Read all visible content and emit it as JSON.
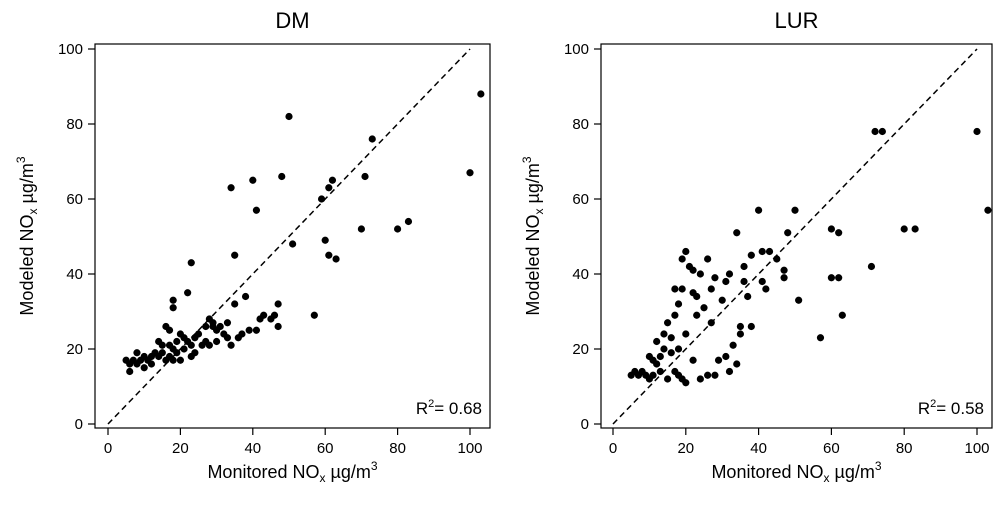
{
  "chart_data": [
    {
      "type": "scatter",
      "title": "DM",
      "xlabel": "Monitored NOx µg/m3",
      "ylabel": "Modeled NOx µg/m3",
      "xlabel_parts": [
        "Monitored NO",
        "x",
        " µg/m",
        "3"
      ],
      "ylabel_parts": [
        "Modeled NO",
        "x",
        " µg/m",
        "3"
      ],
      "xlim": [
        0,
        103
      ],
      "ylim": [
        0,
        100
      ],
      "xticks": [
        0,
        20,
        40,
        60,
        80,
        100
      ],
      "yticks": [
        0,
        20,
        40,
        60,
        80,
        100
      ],
      "grid": false,
      "reference_line": "1:1 dashed",
      "annotation": {
        "prefix": "R",
        "sup": "2",
        "text": "=  0.68"
      },
      "points": [
        [
          5,
          17
        ],
        [
          6,
          14
        ],
        [
          6,
          16
        ],
        [
          7,
          17
        ],
        [
          8,
          16
        ],
        [
          8,
          19
        ],
        [
          9,
          17
        ],
        [
          10,
          15
        ],
        [
          10,
          18
        ],
        [
          11,
          17
        ],
        [
          12,
          16
        ],
        [
          12,
          18
        ],
        [
          13,
          19
        ],
        [
          14,
          18
        ],
        [
          14,
          22
        ],
        [
          15,
          19
        ],
        [
          15,
          21
        ],
        [
          16,
          17
        ],
        [
          16,
          26
        ],
        [
          17,
          25
        ],
        [
          17,
          18
        ],
        [
          17,
          21
        ],
        [
          18,
          17
        ],
        [
          18,
          20
        ],
        [
          18,
          31
        ],
        [
          18,
          33
        ],
        [
          19,
          22
        ],
        [
          19,
          19
        ],
        [
          20,
          17
        ],
        [
          20,
          24
        ],
        [
          21,
          20
        ],
        [
          21,
          23
        ],
        [
          22,
          22
        ],
        [
          22,
          35
        ],
        [
          23,
          43
        ],
        [
          23,
          18
        ],
        [
          23,
          21
        ],
        [
          24,
          19
        ],
        [
          24,
          23
        ],
        [
          25,
          24
        ],
        [
          26,
          21
        ],
        [
          27,
          26
        ],
        [
          27,
          22
        ],
        [
          28,
          28
        ],
        [
          28,
          21
        ],
        [
          29,
          26
        ],
        [
          29,
          27
        ],
        [
          30,
          22
        ],
        [
          30,
          25
        ],
        [
          31,
          26
        ],
        [
          32,
          24
        ],
        [
          33,
          23
        ],
        [
          33,
          27
        ],
        [
          34,
          63
        ],
        [
          34,
          21
        ],
        [
          35,
          32
        ],
        [
          35,
          45
        ],
        [
          36,
          23
        ],
        [
          37,
          24
        ],
        [
          38,
          34
        ],
        [
          39,
          25
        ],
        [
          40,
          65
        ],
        [
          41,
          57
        ],
        [
          41,
          25
        ],
        [
          42,
          28
        ],
        [
          43,
          29
        ],
        [
          45,
          28
        ],
        [
          46,
          29
        ],
        [
          47,
          32
        ],
        [
          47,
          26
        ],
        [
          48,
          66
        ],
        [
          50,
          82
        ],
        [
          51,
          48
        ],
        [
          57,
          29
        ],
        [
          59,
          60
        ],
        [
          60,
          49
        ],
        [
          61,
          45
        ],
        [
          61,
          63
        ],
        [
          62,
          65
        ],
        [
          63,
          44
        ],
        [
          70,
          52
        ],
        [
          71,
          66
        ],
        [
          73,
          76
        ],
        [
          80,
          52
        ],
        [
          83,
          54
        ],
        [
          100,
          67
        ],
        [
          103,
          88
        ]
      ]
    },
    {
      "type": "scatter",
      "title": "LUR",
      "xlabel": "Monitored NOx µg/m3",
      "ylabel": "Modeled NOx µg/m3",
      "xlabel_parts": [
        "Monitored NO",
        "x",
        " µg/m",
        "3"
      ],
      "ylabel_parts": [
        "Modeled NO",
        "x",
        " µg/m",
        "3"
      ],
      "xlim": [
        0,
        103
      ],
      "ylim": [
        0,
        100
      ],
      "xticks": [
        0,
        20,
        40,
        60,
        80,
        100
      ],
      "yticks": [
        0,
        20,
        40,
        60,
        80,
        100
      ],
      "grid": false,
      "reference_line": "1:1 dashed",
      "annotation": {
        "prefix": "R",
        "sup": "2",
        "text": "=  0.58"
      },
      "points": [
        [
          5,
          13
        ],
        [
          6,
          14
        ],
        [
          7,
          13
        ],
        [
          8,
          14
        ],
        [
          9,
          13
        ],
        [
          10,
          12
        ],
        [
          10,
          18
        ],
        [
          11,
          17
        ],
        [
          11,
          13
        ],
        [
          12,
          22
        ],
        [
          12,
          16
        ],
        [
          13,
          14
        ],
        [
          13,
          18
        ],
        [
          14,
          24
        ],
        [
          14,
          20
        ],
        [
          15,
          12
        ],
        [
          15,
          27
        ],
        [
          16,
          19
        ],
        [
          16,
          23
        ],
        [
          17,
          36
        ],
        [
          17,
          14
        ],
        [
          17,
          29
        ],
        [
          18,
          20
        ],
        [
          18,
          13
        ],
        [
          18,
          32
        ],
        [
          19,
          36
        ],
        [
          19,
          12
        ],
        [
          19,
          44
        ],
        [
          20,
          46
        ],
        [
          20,
          24
        ],
        [
          20,
          11
        ],
        [
          21,
          42
        ],
        [
          22,
          41
        ],
        [
          22,
          35
        ],
        [
          22,
          17
        ],
        [
          23,
          29
        ],
        [
          23,
          34
        ],
        [
          24,
          12
        ],
        [
          24,
          40
        ],
        [
          25,
          31
        ],
        [
          26,
          44
        ],
        [
          26,
          13
        ],
        [
          27,
          36
        ],
        [
          27,
          27
        ],
        [
          28,
          39
        ],
        [
          28,
          13
        ],
        [
          29,
          17
        ],
        [
          30,
          33
        ],
        [
          31,
          38
        ],
        [
          31,
          18
        ],
        [
          32,
          40
        ],
        [
          32,
          14
        ],
        [
          33,
          21
        ],
        [
          34,
          51
        ],
        [
          34,
          16
        ],
        [
          35,
          24
        ],
        [
          35,
          26
        ],
        [
          36,
          42
        ],
        [
          36,
          38
        ],
        [
          37,
          34
        ],
        [
          38,
          45
        ],
        [
          38,
          26
        ],
        [
          40,
          57
        ],
        [
          41,
          46
        ],
        [
          41,
          38
        ],
        [
          42,
          36
        ],
        [
          43,
          46
        ],
        [
          45,
          44
        ],
        [
          47,
          41
        ],
        [
          47,
          39
        ],
        [
          48,
          51
        ],
        [
          50,
          57
        ],
        [
          51,
          33
        ],
        [
          57,
          23
        ],
        [
          60,
          52
        ],
        [
          60,
          39
        ],
        [
          62,
          39
        ],
        [
          62,
          51
        ],
        [
          63,
          29
        ],
        [
          71,
          42
        ],
        [
          72,
          78
        ],
        [
          74,
          78
        ],
        [
          80,
          52
        ],
        [
          83,
          52
        ],
        [
          100,
          78
        ],
        [
          103,
          57
        ]
      ]
    }
  ]
}
